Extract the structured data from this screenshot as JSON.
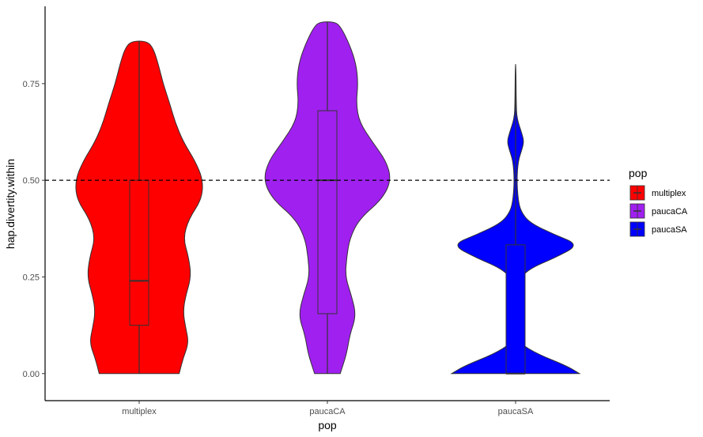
{
  "chart_data": {
    "type": "violin",
    "xlabel": "pop",
    "ylabel": "hap.divertity.within",
    "ylim": [
      -0.07,
      0.95
    ],
    "yticks": [
      0.0,
      0.25,
      0.5,
      0.75
    ],
    "ytick_labels": [
      "0.00",
      "0.25",
      "0.50",
      "0.75"
    ],
    "categories": [
      "multiplex",
      "paucaCA",
      "paucaSA"
    ],
    "reference_line": {
      "y": 0.5,
      "style": "dashed"
    },
    "legend": {
      "title": "pop",
      "position": "right"
    },
    "grid": false,
    "series": [
      {
        "name": "multiplex",
        "color": "#ff0000",
        "box": {
          "min": 0.0,
          "q1": 0.125,
          "median": 0.24,
          "q3": 0.5,
          "max": 0.86
        },
        "density": [
          [
            0.0,
            0.5
          ],
          [
            0.04,
            0.55
          ],
          [
            0.08,
            0.62
          ],
          [
            0.12,
            0.58
          ],
          [
            0.16,
            0.55
          ],
          [
            0.2,
            0.58
          ],
          [
            0.25,
            0.65
          ],
          [
            0.3,
            0.62
          ],
          [
            0.35,
            0.55
          ],
          [
            0.4,
            0.62
          ],
          [
            0.45,
            0.78
          ],
          [
            0.5,
            0.8
          ],
          [
            0.55,
            0.7
          ],
          [
            0.6,
            0.55
          ],
          [
            0.65,
            0.45
          ],
          [
            0.7,
            0.38
          ],
          [
            0.75,
            0.3
          ],
          [
            0.8,
            0.24
          ],
          [
            0.84,
            0.18
          ],
          [
            0.86,
            0.1
          ]
        ]
      },
      {
        "name": "paucaCA",
        "color": "#a020f0",
        "box": {
          "min": 0.0,
          "q1": 0.155,
          "median": 0.5,
          "q3": 0.68,
          "max": 0.91
        },
        "density": [
          [
            0.0,
            0.2
          ],
          [
            0.05,
            0.3
          ],
          [
            0.1,
            0.35
          ],
          [
            0.15,
            0.45
          ],
          [
            0.2,
            0.38
          ],
          [
            0.25,
            0.28
          ],
          [
            0.3,
            0.3
          ],
          [
            0.35,
            0.35
          ],
          [
            0.4,
            0.5
          ],
          [
            0.45,
            0.85
          ],
          [
            0.5,
            1.0
          ],
          [
            0.55,
            0.92
          ],
          [
            0.6,
            0.7
          ],
          [
            0.65,
            0.5
          ],
          [
            0.7,
            0.45
          ],
          [
            0.75,
            0.48
          ],
          [
            0.8,
            0.45
          ],
          [
            0.85,
            0.35
          ],
          [
            0.9,
            0.2
          ],
          [
            0.91,
            0.1
          ]
        ]
      },
      {
        "name": "paucaSA",
        "color": "#0000ff",
        "box": {
          "min": 0.0,
          "q1": 0.0,
          "median": 0.0,
          "q3": 0.333,
          "max": 0.8
        },
        "density": [
          [
            0.0,
            1.0
          ],
          [
            0.02,
            0.8
          ],
          [
            0.05,
            0.35
          ],
          [
            0.08,
            0.05
          ],
          [
            0.12,
            0.02
          ],
          [
            0.2,
            0.02
          ],
          [
            0.24,
            0.05
          ],
          [
            0.27,
            0.2
          ],
          [
            0.3,
            0.62
          ],
          [
            0.333,
            1.0
          ],
          [
            0.36,
            0.6
          ],
          [
            0.39,
            0.22
          ],
          [
            0.42,
            0.08
          ],
          [
            0.45,
            0.04
          ],
          [
            0.5,
            0.02
          ],
          [
            0.55,
            0.04
          ],
          [
            0.58,
            0.1
          ],
          [
            0.6,
            0.13
          ],
          [
            0.62,
            0.1
          ],
          [
            0.66,
            0.02
          ],
          [
            0.7,
            0.01
          ],
          [
            0.8,
            0.005
          ]
        ]
      }
    ]
  }
}
